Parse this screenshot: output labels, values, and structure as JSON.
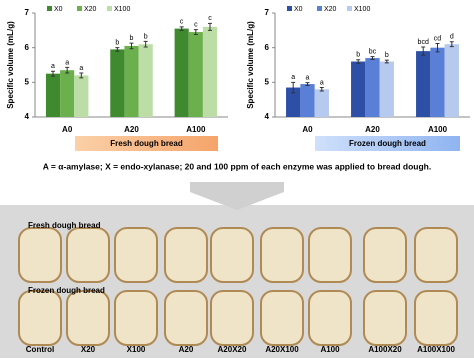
{
  "chart_data": [
    {
      "type": "bar",
      "subtitle": "Fresh dough bread",
      "y_label": "Specific volume (mL/g)",
      "categories": [
        "A0",
        "A20",
        "A100"
      ],
      "ylim": [
        4,
        7
      ],
      "yticks": [
        4,
        5,
        6,
        7
      ],
      "legend": "top",
      "series": [
        {
          "name": "X0",
          "color": "#3f8a2f",
          "values": [
            5.25,
            5.95,
            6.55
          ],
          "errors": [
            0.07,
            0.05,
            0.05
          ],
          "letters": [
            "a",
            "b",
            "c"
          ]
        },
        {
          "name": "X20",
          "color": "#6cb04e",
          "values": [
            5.35,
            6.05,
            6.45
          ],
          "errors": [
            0.08,
            0.08,
            0.07
          ],
          "letters": [
            "a",
            "b",
            "c"
          ]
        },
        {
          "name": "X100",
          "color": "#bcdda6",
          "values": [
            5.2,
            6.1,
            6.6
          ],
          "errors": [
            0.07,
            0.08,
            0.1
          ],
          "letters": [
            "a",
            "b",
            "c"
          ]
        }
      ]
    },
    {
      "type": "bar",
      "subtitle": "Frozen dough bread",
      "y_label": "Specific volume (mL/g)",
      "categories": [
        "A0",
        "A20",
        "A100"
      ],
      "ylim": [
        4,
        7
      ],
      "yticks": [
        4,
        5,
        6,
        7
      ],
      "legend": "top",
      "series": [
        {
          "name": "X0",
          "color": "#2d4fa6",
          "values": [
            4.85,
            5.6,
            5.9
          ],
          "errors": [
            0.15,
            0.05,
            0.12
          ],
          "letters": [
            "a",
            "b",
            "bcd"
          ]
        },
        {
          "name": "X20",
          "color": "#5a7fd6",
          "values": [
            4.95,
            5.7,
            6.0
          ],
          "errors": [
            0.04,
            0.04,
            0.12
          ],
          "letters": [
            "a",
            "bc",
            "cd"
          ]
        },
        {
          "name": "X100",
          "color": "#b6c9ee",
          "values": [
            4.8,
            5.6,
            6.1
          ],
          "errors": [
            0.05,
            0.04,
            0.07
          ],
          "letters": [
            "a",
            "b",
            "d"
          ]
        }
      ]
    }
  ],
  "caption": "A = α-amylase; X = endo-xylanase; 20 and 100 ppm of each enzyme was applied to bread dough.",
  "photo": {
    "rows": [
      "Fresh dough bread",
      "Frozen dough bread"
    ],
    "samples": [
      "Control",
      "X20",
      "X100",
      "A20",
      "A20X20",
      "A20X100",
      "A100",
      "A100X20",
      "A100X100"
    ]
  }
}
